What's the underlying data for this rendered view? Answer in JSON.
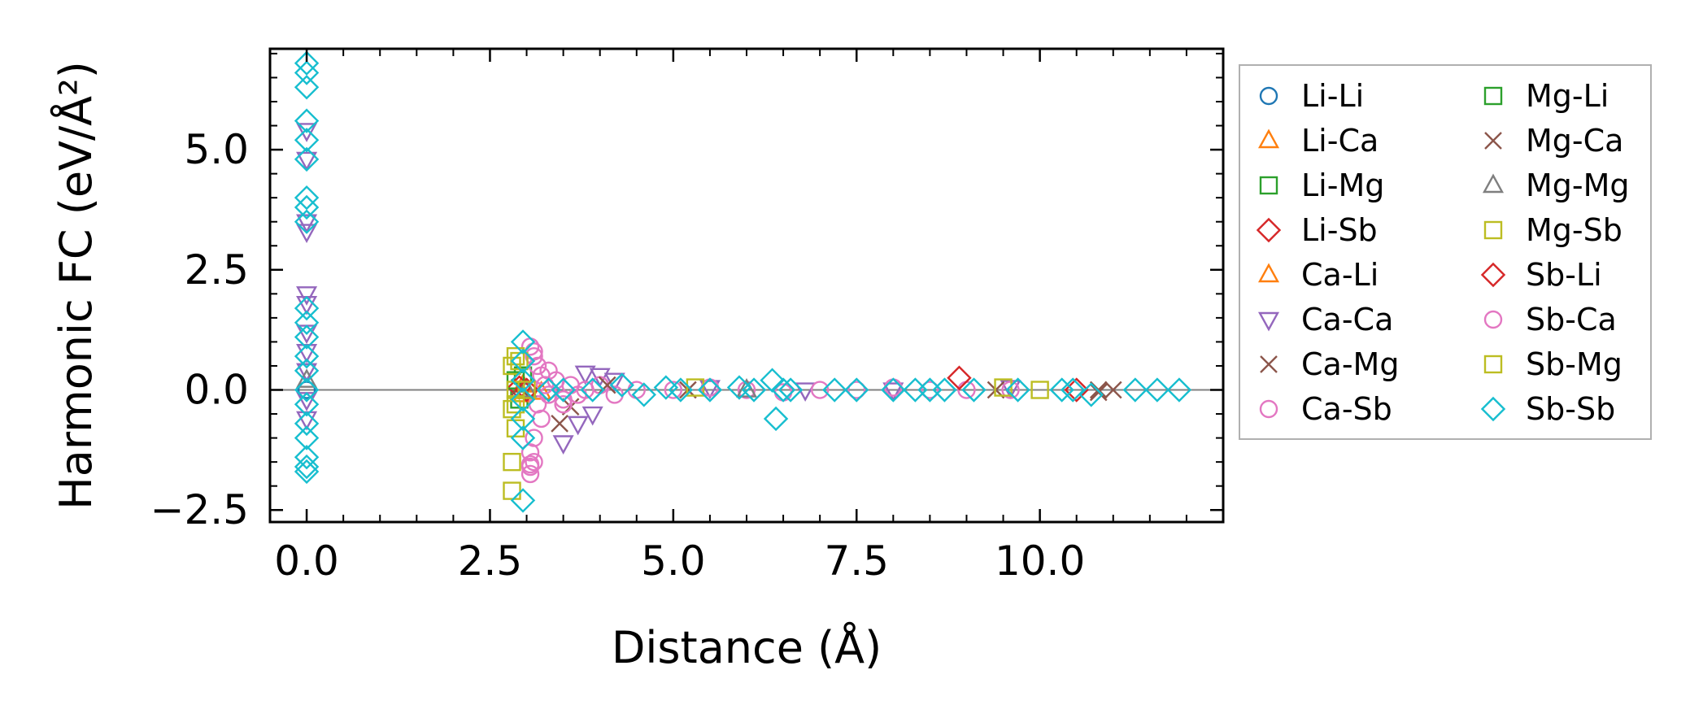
{
  "chart_data": {
    "type": "scatter",
    "title": "",
    "xlabel": "Distance (Å)",
    "ylabel": "Harmonic FC (eV/Å²)",
    "xlim": [
      -0.5,
      12.5
    ],
    "ylim": [
      -2.75,
      7.1
    ],
    "x_ticks": [
      0.0,
      2.5,
      5.0,
      7.5,
      10.0
    ],
    "x_tick_labels": [
      "0.0",
      "2.5",
      "5.0",
      "7.5",
      "10.0"
    ],
    "y_ticks": [
      -2.5,
      0.0,
      2.5,
      5.0
    ],
    "y_tick_labels": [
      "−2.5",
      "0.0",
      "2.5",
      "5.0"
    ],
    "reference_line": {
      "y": 0.0,
      "color": "#808080"
    },
    "legend": {
      "placement": "outside-right",
      "columns": 2
    },
    "series": [
      {
        "name": "Li-Li",
        "marker": "circle",
        "color": "#1f77b4",
        "points": [
          [
            0.0,
            0.0
          ]
        ]
      },
      {
        "name": "Li-Ca",
        "marker": "triangle-up",
        "color": "#ff7f0e",
        "points": [
          [
            2.95,
            0.1
          ],
          [
            3.2,
            -0.05
          ]
        ]
      },
      {
        "name": "Li-Mg",
        "marker": "square",
        "color": "#2ca02c",
        "points": [
          [
            2.9,
            -0.2
          ],
          [
            2.95,
            0.3
          ]
        ]
      },
      {
        "name": "Li-Sb",
        "marker": "diamond",
        "color": "#d62728",
        "points": [
          [
            2.9,
            0.05
          ],
          [
            3.3,
            0.0
          ]
        ]
      },
      {
        "name": "Ca-Li",
        "marker": "triangle-up",
        "color": "#ff7f0e",
        "points": [
          [
            2.95,
            -0.1
          ]
        ]
      },
      {
        "name": "Ca-Ca",
        "marker": "triangle-down",
        "color": "#9467bd",
        "points": [
          [
            0.0,
            3.3
          ],
          [
            0.0,
            3.5
          ],
          [
            0.0,
            2.0
          ],
          [
            0.0,
            1.8
          ],
          [
            0.0,
            1.2
          ],
          [
            0.0,
            0.8
          ],
          [
            0.0,
            0.4
          ],
          [
            0.0,
            -0.2
          ],
          [
            0.0,
            -0.6
          ],
          [
            0.0,
            5.4
          ],
          [
            0.0,
            4.8
          ],
          [
            3.5,
            -1.1
          ],
          [
            3.7,
            -0.7
          ],
          [
            3.9,
            -0.5
          ],
          [
            3.8,
            0.35
          ],
          [
            4.0,
            0.3
          ],
          [
            4.2,
            0.2
          ],
          [
            5.5,
            0.05
          ],
          [
            6.8,
            0.0
          ],
          [
            8.0,
            0.0
          ],
          [
            9.6,
            0.05
          ]
        ]
      },
      {
        "name": "Ca-Mg",
        "marker": "x",
        "color": "#8c564b",
        "points": [
          [
            3.45,
            -0.7
          ],
          [
            3.6,
            -0.35
          ],
          [
            2.9,
            0.05
          ],
          [
            10.8,
            -0.05
          ],
          [
            11.0,
            0.0
          ],
          [
            9.4,
            0.0
          ]
        ]
      },
      {
        "name": "Ca-Sb",
        "marker": "circle",
        "color": "#e377c2",
        "points": [
          [
            3.05,
            -1.75
          ],
          [
            3.05,
            -1.6
          ],
          [
            3.1,
            -1.5
          ],
          [
            3.05,
            -1.3
          ],
          [
            3.1,
            -1.0
          ],
          [
            3.05,
            0.9
          ],
          [
            3.1,
            0.7
          ],
          [
            3.15,
            0.5
          ],
          [
            3.2,
            0.3
          ],
          [
            3.15,
            -0.3
          ],
          [
            3.2,
            -0.6
          ],
          [
            3.25,
            0.1
          ],
          [
            3.3,
            -0.1
          ],
          [
            3.4,
            0.2
          ],
          [
            3.5,
            -0.2
          ],
          [
            3.6,
            0.1
          ],
          [
            3.7,
            -0.1
          ],
          [
            3.8,
            0.0
          ],
          [
            4.0,
            0.1
          ],
          [
            4.2,
            -0.1
          ],
          [
            4.5,
            0.0
          ],
          [
            5.0,
            0.0
          ],
          [
            5.5,
            0.05
          ],
          [
            6.0,
            0.0
          ],
          [
            6.5,
            -0.05
          ],
          [
            7.0,
            0.0
          ],
          [
            7.5,
            0.0
          ],
          [
            8.0,
            0.05
          ],
          [
            8.5,
            0.0
          ],
          [
            9.0,
            0.0
          ],
          [
            9.6,
            0.0
          ]
        ]
      },
      {
        "name": "Mg-Li",
        "marker": "square",
        "color": "#2ca02c",
        "points": [
          [
            2.85,
            0.2
          ]
        ]
      },
      {
        "name": "Mg-Ca",
        "marker": "x",
        "color": "#8c564b",
        "points": [
          [
            4.1,
            0.1
          ],
          [
            5.2,
            0.0
          ],
          [
            10.8,
            0.0
          ]
        ]
      },
      {
        "name": "Mg-Mg",
        "marker": "triangle-up",
        "color": "#7f7f7f",
        "points": [
          [
            0.0,
            0.2
          ],
          [
            3.0,
            0.0
          ],
          [
            6.0,
            0.0
          ]
        ]
      },
      {
        "name": "Mg-Sb",
        "marker": "square",
        "color": "#bcbd22",
        "points": [
          [
            2.8,
            -2.1
          ],
          [
            2.8,
            -1.5
          ],
          [
            2.85,
            -0.8
          ],
          [
            2.8,
            -0.4
          ],
          [
            2.85,
            0.0
          ],
          [
            2.8,
            0.5
          ],
          [
            2.85,
            0.7
          ],
          [
            5.3,
            0.05
          ],
          [
            9.5,
            0.05
          ],
          [
            10.0,
            0.0
          ]
        ]
      },
      {
        "name": "Sb-Li",
        "marker": "diamond",
        "color": "#d62728",
        "points": [
          [
            8.9,
            0.25
          ],
          [
            10.5,
            0.0
          ],
          [
            3.0,
            0.0
          ]
        ]
      },
      {
        "name": "Sb-Ca",
        "marker": "circle",
        "color": "#e377c2",
        "points": [
          [
            3.05,
            -1.55
          ],
          [
            3.1,
            0.8
          ],
          [
            3.3,
            0.4
          ],
          [
            3.5,
            -0.3
          ]
        ]
      },
      {
        "name": "Sb-Mg",
        "marker": "square",
        "color": "#bcbd22",
        "points": [
          [
            2.85,
            -0.3
          ],
          [
            2.9,
            0.6
          ],
          [
            3.0,
            0.0
          ]
        ]
      },
      {
        "name": "Sb-Sb",
        "marker": "diamond",
        "color": "#17becf",
        "points": [
          [
            0.0,
            6.8
          ],
          [
            0.0,
            6.6
          ],
          [
            0.0,
            6.3
          ],
          [
            0.0,
            5.6
          ],
          [
            0.0,
            5.2
          ],
          [
            0.0,
            4.8
          ],
          [
            0.0,
            4.0
          ],
          [
            0.0,
            3.8
          ],
          [
            0.0,
            3.5
          ],
          [
            0.0,
            1.7
          ],
          [
            0.0,
            1.4
          ],
          [
            0.0,
            1.1
          ],
          [
            0.0,
            0.7
          ],
          [
            0.0,
            0.4
          ],
          [
            0.0,
            0.0
          ],
          [
            0.0,
            -0.3
          ],
          [
            0.0,
            -0.7
          ],
          [
            0.0,
            -1.0
          ],
          [
            0.0,
            -1.4
          ],
          [
            0.0,
            -1.6
          ],
          [
            0.0,
            -1.7
          ],
          [
            2.95,
            1.0
          ],
          [
            2.95,
            0.6
          ],
          [
            2.95,
            0.2
          ],
          [
            2.95,
            -0.2
          ],
          [
            2.95,
            -0.6
          ],
          [
            2.95,
            -1.0
          ],
          [
            2.95,
            -2.3
          ],
          [
            3.3,
            0.0
          ],
          [
            3.5,
            0.0
          ],
          [
            3.9,
            0.0
          ],
          [
            4.3,
            0.1
          ],
          [
            4.6,
            -0.1
          ],
          [
            4.9,
            0.05
          ],
          [
            5.1,
            0.0
          ],
          [
            5.5,
            0.0
          ],
          [
            5.9,
            0.05
          ],
          [
            6.1,
            0.0
          ],
          [
            6.35,
            0.2
          ],
          [
            6.4,
            -0.6
          ],
          [
            6.5,
            0.0
          ],
          [
            6.6,
            0.0
          ],
          [
            7.2,
            0.0
          ],
          [
            7.5,
            0.0
          ],
          [
            8.0,
            0.0
          ],
          [
            8.3,
            0.0
          ],
          [
            8.5,
            0.0
          ],
          [
            8.7,
            0.0
          ],
          [
            9.1,
            0.0
          ],
          [
            9.7,
            0.0
          ],
          [
            10.3,
            0.0
          ],
          [
            10.45,
            0.0
          ],
          [
            10.7,
            -0.1
          ],
          [
            11.3,
            0.0
          ],
          [
            11.6,
            0.0
          ],
          [
            11.9,
            0.0
          ]
        ]
      }
    ]
  }
}
